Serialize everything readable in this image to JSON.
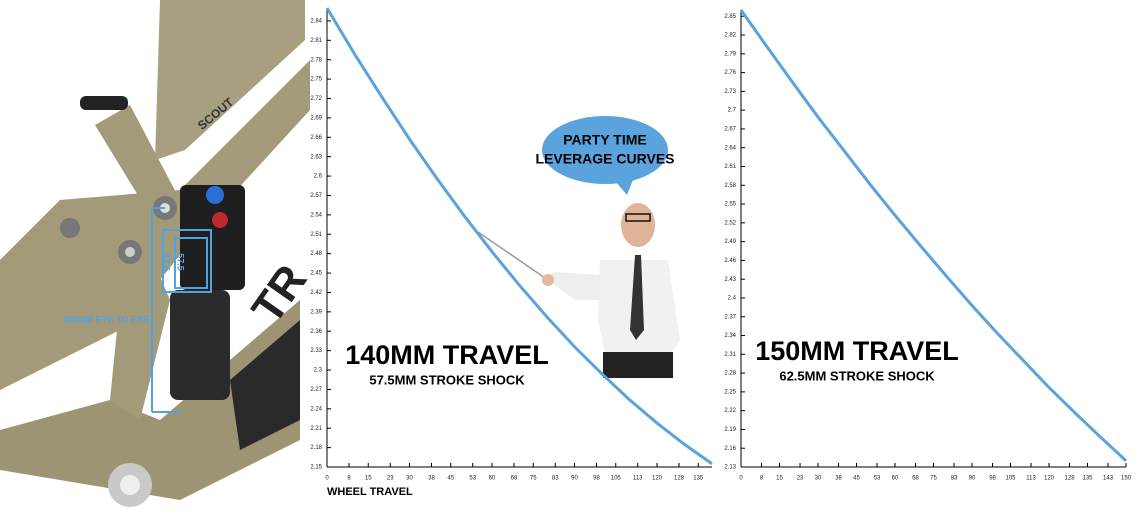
{
  "frame_photo": {
    "model": "SCOUT",
    "brand": "TR",
    "eye_to_eye": "205MM EYE TO EYE",
    "stroke_labels": [
      "62.5",
      "57.5"
    ]
  },
  "chart_data": [
    {
      "type": "line",
      "title": "140MM TRAVEL",
      "subtitle": "57.5MM STROKE SHOCK",
      "x_label": "WHEEL TRAVEL",
      "annotations": [
        "PARTY TIME",
        "LEVERAGE CURVES"
      ],
      "color": "#5aa3dd",
      "x": [
        0,
        10,
        20,
        30,
        40,
        50,
        60,
        70,
        80,
        90,
        100,
        110,
        120,
        130,
        140
      ],
      "values": [
        2.86,
        2.789,
        2.722,
        2.657,
        2.596,
        2.538,
        2.483,
        2.431,
        2.382,
        2.336,
        2.294,
        2.254,
        2.218,
        2.185,
        2.155
      ],
      "xlim": [
        0,
        140
      ],
      "ylim": [
        2.15,
        2.86
      ],
      "xticks": [
        0,
        8,
        15,
        23,
        30,
        38,
        45,
        53,
        60,
        68,
        75,
        83,
        90,
        98,
        105,
        113,
        120,
        128,
        135
      ],
      "yticks": [
        2.15,
        2.18,
        2.21,
        2.24,
        2.27,
        2.3,
        2.33,
        2.36,
        2.39,
        2.42,
        2.45,
        2.48,
        2.51,
        2.54,
        2.57,
        2.6,
        2.63,
        2.66,
        2.69,
        2.72,
        2.75,
        2.78,
        2.81,
        2.84
      ]
    },
    {
      "type": "line",
      "title": "150MM TRAVEL",
      "subtitle": "62.5MM STROKE SHOCK",
      "color": "#5aa3dd",
      "x": [
        0,
        10,
        20,
        30,
        40,
        50,
        60,
        70,
        80,
        90,
        100,
        110,
        120,
        130,
        140,
        150
      ],
      "values": [
        2.86,
        2.802,
        2.745,
        2.689,
        2.636,
        2.583,
        2.532,
        2.483,
        2.435,
        2.388,
        2.343,
        2.3,
        2.257,
        2.217,
        2.178,
        2.14
      ],
      "xlim": [
        0,
        150
      ],
      "ylim": [
        2.13,
        2.86
      ],
      "xticks": [
        0,
        8,
        15,
        23,
        30,
        38,
        45,
        53,
        60,
        68,
        75,
        83,
        90,
        98,
        105,
        113,
        120,
        128,
        135,
        143,
        150
      ],
      "yticks": [
        2.13,
        2.16,
        2.19,
        2.22,
        2.25,
        2.28,
        2.31,
        2.34,
        2.37,
        2.4,
        2.43,
        2.46,
        2.49,
        2.52,
        2.55,
        2.58,
        2.61,
        2.64,
        2.67,
        2.7,
        2.73,
        2.76,
        2.79,
        2.82,
        2.85
      ]
    }
  ]
}
